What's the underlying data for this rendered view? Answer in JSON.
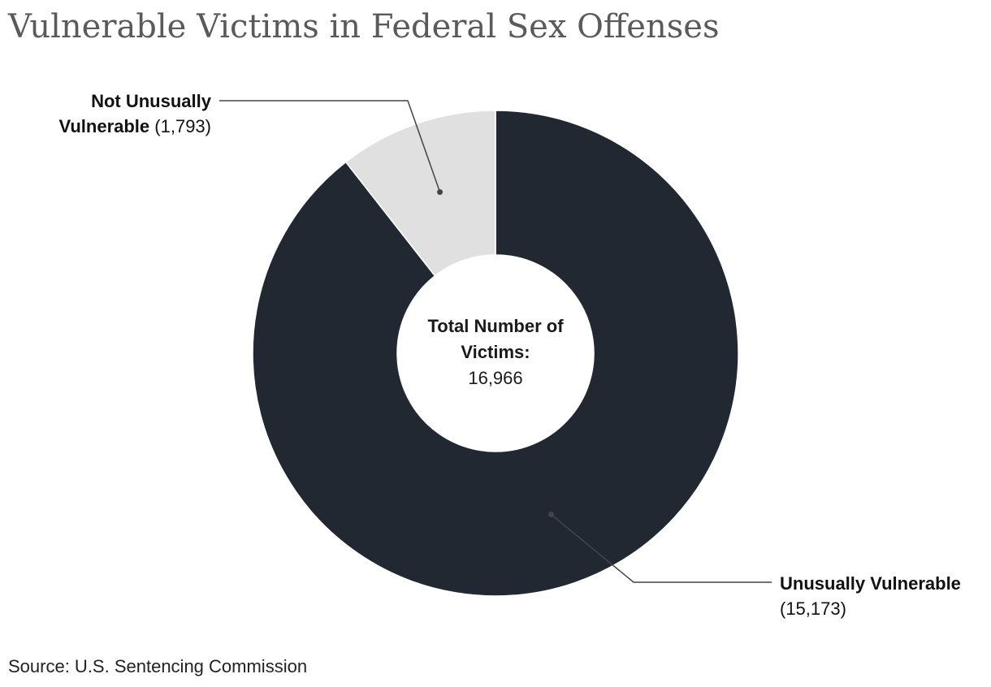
{
  "chart_data": {
    "type": "pie",
    "title": "Vulnerable Victims in Federal Sex Offenses",
    "categories": [
      "Unusually Vulnerable",
      "Not Unusually Vulnerable"
    ],
    "values": [
      15173,
      1793
    ],
    "value_labels": [
      "(15,173)",
      "(1,793)"
    ],
    "colors": [
      "#222831",
      "#e0e0e0"
    ],
    "donut": true,
    "center_label": "Total Number of Victims:",
    "total": {
      "value": 16966,
      "label": "16,966"
    },
    "source": "Source: U.S. Sentencing Commission"
  }
}
